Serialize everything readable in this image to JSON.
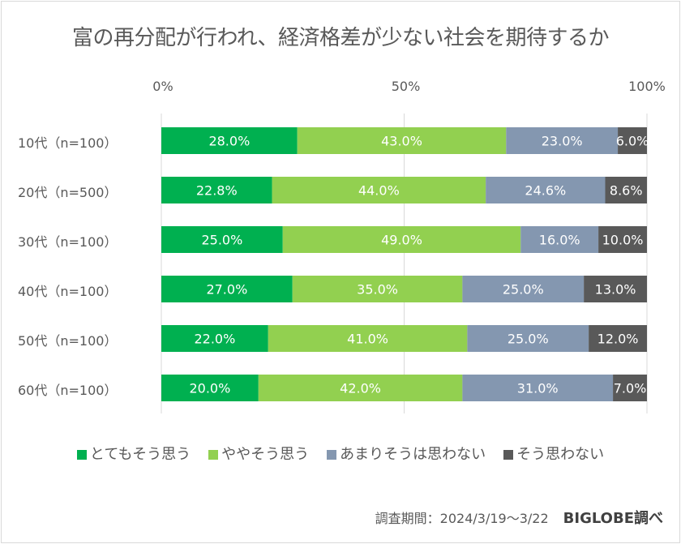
{
  "chart_data": {
    "type": "bar",
    "orientation": "horizontal",
    "stacked": true,
    "title": "富の再分配が行われ、経済格差が少ない社会を期待するか",
    "categories": [
      "10代（n=100）",
      "20代（n=500）",
      "30代（n=100）",
      "40代（n=100）",
      "50代（n=100）",
      "60代（n=100）"
    ],
    "xlim": [
      0,
      100
    ],
    "x_ticks": [
      "0%",
      "50%",
      "100%"
    ],
    "grid": true,
    "legend_position": "bottom",
    "series": [
      {
        "name": "とてもそう思う",
        "color": "#00b050",
        "values": [
          28.0,
          22.8,
          25.0,
          27.0,
          22.0,
          20.0
        ],
        "labels": [
          "28.0%",
          "22.8%",
          "25.0%",
          "27.0%",
          "22.0%",
          "20.0%"
        ]
      },
      {
        "name": "ややそう思う",
        "color": "#92d050",
        "values": [
          43.0,
          44.0,
          49.0,
          35.0,
          41.0,
          42.0
        ],
        "labels": [
          "43.0%",
          "44.0%",
          "49.0%",
          "35.0%",
          "41.0%",
          "42.0%"
        ]
      },
      {
        "name": "あまりそうは思わない",
        "color": "#8497b0",
        "values": [
          23.0,
          24.6,
          16.0,
          25.0,
          25.0,
          31.0
        ],
        "labels": [
          "23.0%",
          "24.6%",
          "16.0%",
          "25.0%",
          "25.0%",
          "31.0%"
        ]
      },
      {
        "name": "そう思わない",
        "color": "#595959",
        "values": [
          6.0,
          8.6,
          10.0,
          13.0,
          12.0,
          7.0
        ],
        "labels": [
          "6.0%",
          "8.6%",
          "10.0%",
          "13.0%",
          "12.0%",
          "7.0%"
        ]
      }
    ]
  },
  "footer": {
    "survey_period": "調査期間：2024/3/19～3/22",
    "source": "BIGLOBE調べ"
  }
}
